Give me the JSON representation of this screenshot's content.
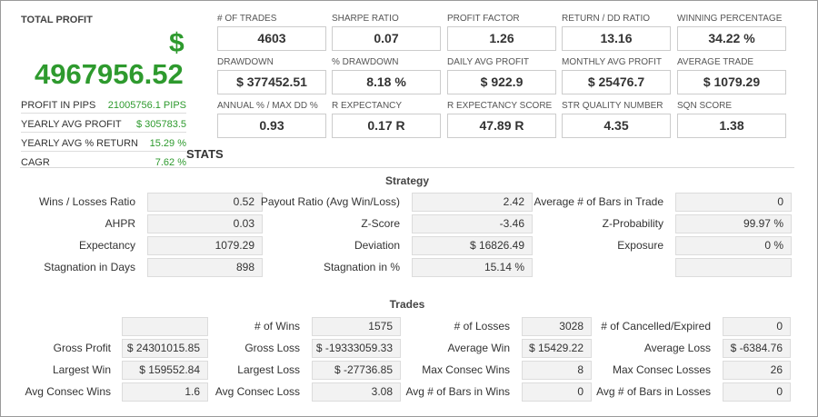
{
  "total_profit": {
    "label": "TOTAL PROFIT",
    "currency_symbol": "$",
    "value": "4967956.52",
    "rows": [
      {
        "label": "PROFIT IN PIPS",
        "value": "21005756.1 PIPS"
      },
      {
        "label": "YEARLY AVG PROFIT",
        "value": "$ 305783.5"
      },
      {
        "label": "YEARLY AVG % RETURN",
        "value": "15.29 %"
      },
      {
        "label": "CAGR",
        "value": "7.62 %"
      }
    ]
  },
  "metrics": [
    {
      "label": "# OF TRADES",
      "value": "4603"
    },
    {
      "label": "SHARPE RATIO",
      "value": "0.07"
    },
    {
      "label": "PROFIT FACTOR",
      "value": "1.26"
    },
    {
      "label": "RETURN / DD RATIO",
      "value": "13.16"
    },
    {
      "label": "WINNING PERCENTAGE",
      "value": "34.22 %"
    },
    {
      "label": "DRAWDOWN",
      "value": "$ 377452.51"
    },
    {
      "label": "% DRAWDOWN",
      "value": "8.18 %"
    },
    {
      "label": "DAILY AVG PROFIT",
      "value": "$ 922.9"
    },
    {
      "label": "MONTHLY AVG PROFIT",
      "value": "$ 25476.7"
    },
    {
      "label": "AVERAGE TRADE",
      "value": "$ 1079.29"
    },
    {
      "label": "ANNUAL % / MAX DD %",
      "value": "0.93"
    },
    {
      "label": "R EXPECTANCY",
      "value": "0.17 R"
    },
    {
      "label": "R EXPECTANCY SCORE",
      "value": "47.89 R"
    },
    {
      "label": "STR QUALITY NUMBER",
      "value": "4.35"
    },
    {
      "label": "SQN SCORE",
      "value": "1.38"
    }
  ],
  "stats_title": "STATS",
  "strategy": {
    "title": "Strategy",
    "rows": [
      [
        {
          "label": "Wins / Losses Ratio",
          "value": "0.52"
        },
        {
          "label": "Payout Ratio (Avg Win/Loss)",
          "value": "2.42"
        },
        {
          "label": "Average # of Bars in Trade",
          "value": "0"
        }
      ],
      [
        {
          "label": "AHPR",
          "value": "0.03"
        },
        {
          "label": "Z-Score",
          "value": "-3.46"
        },
        {
          "label": "Z-Probability",
          "value": "99.97 %"
        }
      ],
      [
        {
          "label": "Expectancy",
          "value": "1079.29"
        },
        {
          "label": "Deviation",
          "value": "$ 16826.49"
        },
        {
          "label": "Exposure",
          "value": "0 %"
        }
      ],
      [
        {
          "label": "Stagnation in Days",
          "value": "898"
        },
        {
          "label": "Stagnation in %",
          "value": "15.14 %"
        },
        {
          "label": "",
          "value": ""
        }
      ]
    ]
  },
  "trades": {
    "title": "Trades",
    "rows": [
      [
        {
          "label": "",
          "value": ""
        },
        {
          "label": "# of Wins",
          "value": "1575"
        },
        {
          "label": "# of Losses",
          "value": "3028"
        },
        {
          "label": "# of Cancelled/Expired",
          "value": "0"
        }
      ],
      [
        {
          "label": "Gross Profit",
          "value": "$ 24301015.85"
        },
        {
          "label": "Gross Loss",
          "value": "$ -19333059.33"
        },
        {
          "label": "Average Win",
          "value": "$ 15429.22"
        },
        {
          "label": "Average Loss",
          "value": "$ -6384.76"
        }
      ],
      [
        {
          "label": "Largest Win",
          "value": "$ 159552.84"
        },
        {
          "label": "Largest Loss",
          "value": "$ -27736.85"
        },
        {
          "label": "Max Consec Wins",
          "value": "8"
        },
        {
          "label": "Max Consec Losses",
          "value": "26"
        }
      ],
      [
        {
          "label": "Avg Consec Wins",
          "value": "1.6"
        },
        {
          "label": "Avg Consec Loss",
          "value": "3.08"
        },
        {
          "label": "Avg # of Bars in Wins",
          "value": "0"
        },
        {
          "label": "Avg # of Bars in Losses",
          "value": "0"
        }
      ]
    ]
  }
}
